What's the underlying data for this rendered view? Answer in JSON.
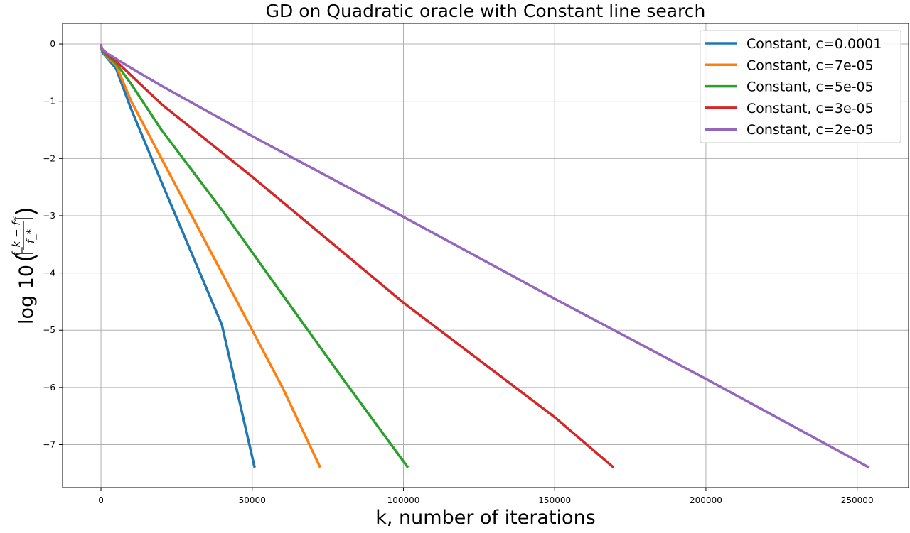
{
  "chart_data": {
    "type": "line",
    "title": "GD on Quadratic oracle with Constant line search",
    "xlabel": "k, number of iterations",
    "ylabel_prefix": "log 10",
    "ylabel_fraction_numerator": "f_k − f*",
    "ylabel_fraction_denominator": "f_*",
    "xlim": [
      -12700,
      267000
    ],
    "ylim": [
      -7.75,
      0.36
    ],
    "x_ticks": [
      0,
      50000,
      100000,
      150000,
      200000,
      250000
    ],
    "x_tick_labels": [
      "0",
      "50000",
      "100000",
      "150000",
      "200000",
      "250000"
    ],
    "y_ticks": [
      0,
      -1,
      -2,
      -3,
      -4,
      -5,
      -6,
      -7
    ],
    "y_tick_labels": [
      "0",
      "−1",
      "−2",
      "−3",
      "−4",
      "−5",
      "−6",
      "−7"
    ],
    "grid": true,
    "legend_position": "top-right",
    "series": [
      {
        "name": "Constant, c=0.0001",
        "color": "#1f77b4",
        "x": [
          0,
          100,
          300,
          600,
          1000,
          2000,
          5000,
          10000,
          20000,
          30000,
          40000,
          50800
        ],
        "y": [
          0,
          -0.06,
          -0.11,
          -0.15,
          -0.18,
          -0.24,
          -0.43,
          -1.14,
          -2.41,
          -3.66,
          -4.91,
          -7.4
        ]
      },
      {
        "name": "Constant, c=7e-05",
        "color": "#ff7f0e",
        "x": [
          0,
          100,
          300,
          600,
          1000,
          2000,
          5000,
          10000,
          20000,
          30000,
          40000,
          50000,
          60000,
          72500
        ],
        "y": [
          0,
          -0.05,
          -0.1,
          -0.13,
          -0.16,
          -0.22,
          -0.37,
          -1.0,
          -2.0,
          -3.0,
          -4.0,
          -5.0,
          -6.0,
          -7.4
        ]
      },
      {
        "name": "Constant, c=5e-05",
        "color": "#2ca02c",
        "x": [
          0,
          100,
          300,
          600,
          1000,
          2000,
          5000,
          10000,
          20000,
          40000,
          60000,
          80000,
          101500
        ],
        "y": [
          0,
          -0.05,
          -0.09,
          -0.12,
          -0.15,
          -0.2,
          -0.34,
          -0.7,
          -1.5,
          -2.9,
          -4.38,
          -5.85,
          -7.4
        ]
      },
      {
        "name": "Constant, c=3e-05",
        "color": "#d62728",
        "x": [
          0,
          100,
          300,
          600,
          1000,
          2000,
          5000,
          10000,
          20000,
          50000,
          100000,
          150000,
          169500
        ],
        "y": [
          0,
          -0.04,
          -0.08,
          -0.11,
          -0.13,
          -0.18,
          -0.3,
          -0.55,
          -1.05,
          -2.32,
          -4.52,
          -6.52,
          -7.4
        ]
      },
      {
        "name": "Constant, c=2e-05",
        "color": "#9467bd",
        "x": [
          0,
          100,
          300,
          600,
          1000,
          2000,
          5000,
          10000,
          20000,
          50000,
          100000,
          150000,
          200000,
          254000
        ],
        "y": [
          0,
          -0.04,
          -0.07,
          -0.1,
          -0.12,
          -0.16,
          -0.26,
          -0.42,
          -0.73,
          -1.61,
          -3.02,
          -4.45,
          -5.85,
          -7.4
        ]
      }
    ]
  }
}
